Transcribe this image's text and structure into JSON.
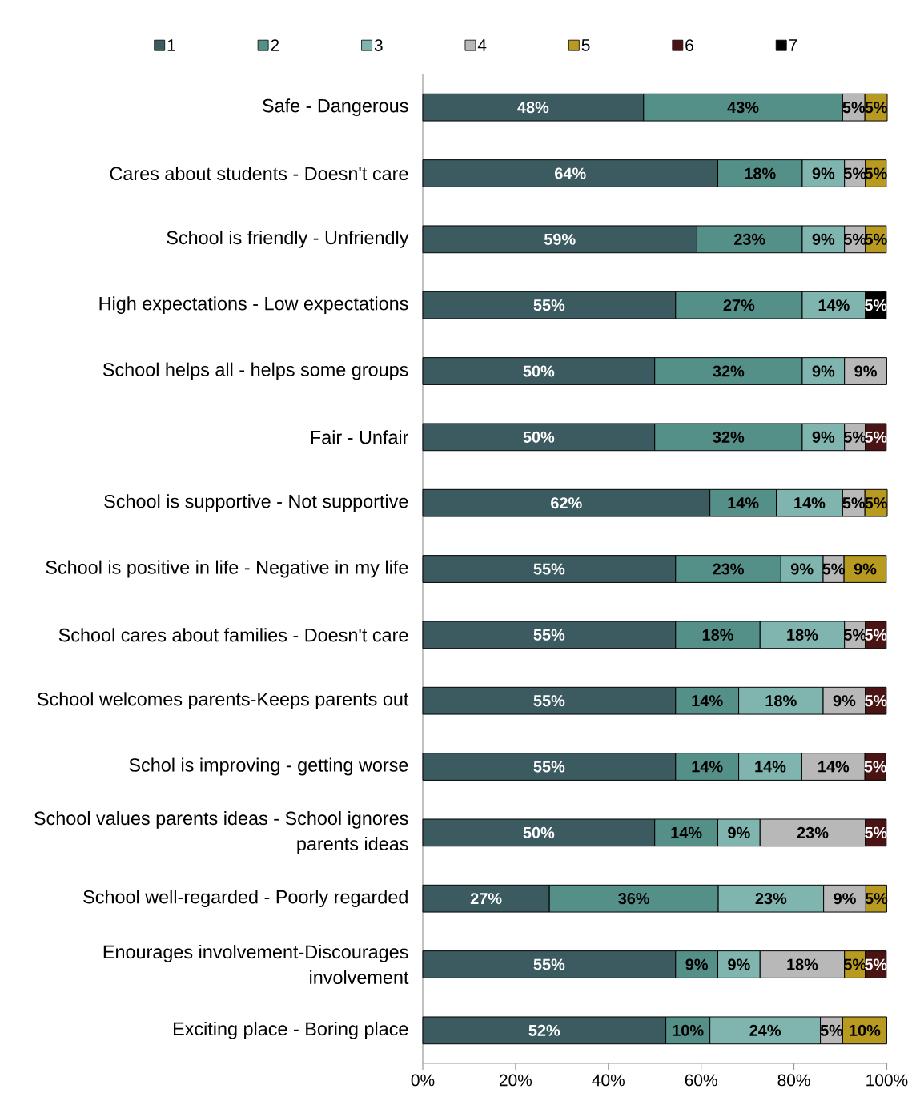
{
  "chart_data": {
    "type": "bar",
    "orientation": "horizontal",
    "stacked": true,
    "legend": "top",
    "grid": false,
    "categories": [
      "Safe - Dangerous",
      "Cares about students - Doesn't care",
      "School is friendly - Unfriendly",
      "High expectations - Low expectations",
      "School helps all - helps some groups",
      "Fair - Unfair",
      "School is supportive - Not supportive",
      "School is positive in life - Negative in my life",
      "School cares about families - Doesn't care",
      "School welcomes parents-Keeps parents out",
      "Schol is improving - getting worse",
      "School values parents ideas - School ignores parents ideas",
      "School well-regarded - Poorly regarded",
      "Enourages involvement-Discourages involvement",
      "Exciting place - Boring place"
    ],
    "series": [
      {
        "name": "1",
        "color": "#3b5b61",
        "values": [
          47.6,
          63.6,
          59.1,
          54.5,
          50,
          50,
          61.9,
          54.5,
          54.5,
          54.5,
          54.5,
          50,
          27.3,
          54.5,
          52.4
        ],
        "value_labels": [
          "48%",
          "64%",
          "59%",
          "55%",
          "50%",
          "50%",
          "62%",
          "55%",
          "55%",
          "55%",
          "55%",
          "50%",
          "27%",
          "55%",
          "52%"
        ]
      },
      {
        "name": "2",
        "color": "#559088",
        "values": [
          42.9,
          18.2,
          22.7,
          27.3,
          31.8,
          31.8,
          14.3,
          22.7,
          18.2,
          13.6,
          13.6,
          13.6,
          36.4,
          9.1,
          9.5
        ],
        "value_labels": [
          "43%",
          "18%",
          "23%",
          "27%",
          "32%",
          "32%",
          "14%",
          "23%",
          "18%",
          "14%",
          "14%",
          "14%",
          "36%",
          "9%",
          "10%"
        ]
      },
      {
        "name": "3",
        "color": "#7fb5ae",
        "values": [
          null,
          9.1,
          9.1,
          13.6,
          9.1,
          9.1,
          14.3,
          9.1,
          18.2,
          18.2,
          13.6,
          9.1,
          22.7,
          9.1,
          23.8
        ],
        "value_labels": [
          null,
          "9%",
          "9%",
          "14%",
          "9%",
          "9%",
          "14%",
          "9%",
          "18%",
          "18%",
          "14%",
          "9%",
          "23%",
          "9%",
          "24%"
        ]
      },
      {
        "name": "4",
        "color": "#b8b8b8",
        "values": [
          4.8,
          4.5,
          4.5,
          null,
          9.1,
          4.5,
          4.8,
          4.5,
          4.5,
          9.1,
          13.6,
          22.7,
          9.1,
          18.2,
          4.8
        ],
        "value_labels": [
          "5%",
          "5%",
          "5%",
          null,
          "9%",
          "5%",
          "5%",
          "5%",
          "5%",
          "9%",
          "14%",
          "23%",
          "9%",
          "18%",
          "5%"
        ]
      },
      {
        "name": "5",
        "color": "#b89a20",
        "values": [
          4.8,
          4.5,
          4.5,
          null,
          null,
          null,
          4.8,
          9.1,
          null,
          null,
          null,
          null,
          4.5,
          4.5,
          9.5
        ],
        "value_labels": [
          "5%",
          "5%",
          "5%",
          null,
          null,
          null,
          "5%",
          "9%",
          null,
          null,
          null,
          null,
          "5%",
          "5%",
          "10%"
        ]
      },
      {
        "name": "6",
        "color": "#4a1414",
        "values": [
          null,
          null,
          null,
          null,
          null,
          4.5,
          null,
          null,
          4.5,
          4.5,
          4.5,
          4.5,
          null,
          4.5,
          null
        ],
        "value_labels": [
          null,
          null,
          null,
          null,
          null,
          "5%",
          null,
          null,
          "5%",
          "5%",
          "5%",
          "5%",
          null,
          "5%",
          null
        ]
      },
      {
        "name": "7",
        "color": "#000000",
        "values": [
          null,
          null,
          null,
          4.5,
          null,
          null,
          null,
          null,
          null,
          null,
          null,
          null,
          null,
          null,
          null
        ],
        "value_labels": [
          null,
          null,
          null,
          "5%",
          null,
          null,
          null,
          null,
          null,
          null,
          null,
          null,
          null,
          null,
          null
        ]
      }
    ],
    "xlim": [
      0,
      100.1
    ],
    "xticks": [
      {
        "value": 0,
        "label": "0%"
      },
      {
        "value": 20,
        "label": "20%"
      },
      {
        "value": 40,
        "label": "40%"
      },
      {
        "value": 60,
        "label": "60%"
      },
      {
        "value": 80,
        "label": "80%"
      },
      {
        "value": 100,
        "label": "100%"
      }
    ]
  }
}
